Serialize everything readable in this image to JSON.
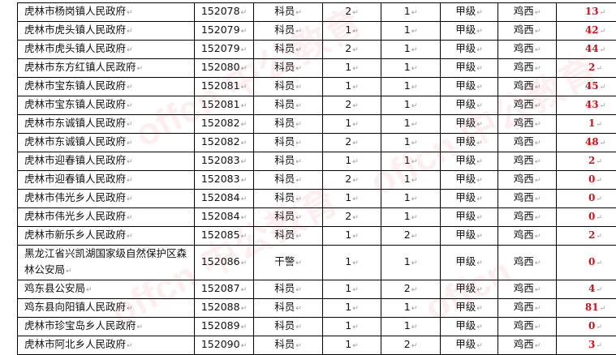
{
  "watermark": "offcn 中公教育",
  "colors": {
    "count": "#c8141b",
    "watermark": "#dc1e1e"
  },
  "rows": [
    {
      "unit": "虎林市杨岗镇人民政府",
      "code": "152078",
      "position": "科员",
      "a": "2",
      "b": "1",
      "level": "甲级",
      "area": "鸡西",
      "count": "13"
    },
    {
      "unit": "虎林市虎头镇人民政府",
      "code": "152079",
      "position": "科员",
      "a": "1",
      "b": "1",
      "level": "甲级",
      "area": "鸡西",
      "count": "42"
    },
    {
      "unit": "虎林市虎头镇人民政府",
      "code": "152079",
      "position": "科员",
      "a": "2",
      "b": "1",
      "level": "甲级",
      "area": "鸡西",
      "count": "44"
    },
    {
      "unit": "虎林市东方红镇人民政府",
      "code": "152080",
      "position": "科员",
      "a": "1",
      "b": "1",
      "level": "甲级",
      "area": "鸡西",
      "count": "2"
    },
    {
      "unit": "虎林市宝东镇人民政府",
      "code": "152081",
      "position": "科员",
      "a": "1",
      "b": "1",
      "level": "甲级",
      "area": "鸡西",
      "count": "45"
    },
    {
      "unit": "虎林市宝东镇人民政府",
      "code": "152081",
      "position": "科员",
      "a": "2",
      "b": "1",
      "level": "甲级",
      "area": "鸡西",
      "count": "43"
    },
    {
      "unit": "虎林市东诚镇人民政府",
      "code": "152082",
      "position": "科员",
      "a": "1",
      "b": "1",
      "level": "甲级",
      "area": "鸡西",
      "count": "1"
    },
    {
      "unit": "虎林市东诚镇人民政府",
      "code": "152082",
      "position": "科员",
      "a": "2",
      "b": "1",
      "level": "甲级",
      "area": "鸡西",
      "count": "48"
    },
    {
      "unit": "虎林市迎春镇人民政府",
      "code": "152083",
      "position": "科员",
      "a": "1",
      "b": "1",
      "level": "甲级",
      "area": "鸡西",
      "count": "2"
    },
    {
      "unit": "虎林市迎春镇人民政府",
      "code": "152083",
      "position": "科员",
      "a": "2",
      "b": "1",
      "level": "甲级",
      "area": "鸡西",
      "count": "0"
    },
    {
      "unit": "虎林市伟光乡人民政府",
      "code": "152084",
      "position": "科员",
      "a": "1",
      "b": "1",
      "level": "甲级",
      "area": "鸡西",
      "count": "0"
    },
    {
      "unit": "虎林市伟光乡人民政府",
      "code": "152084",
      "position": "科员",
      "a": "2",
      "b": "1",
      "level": "甲级",
      "area": "鸡西",
      "count": "0"
    },
    {
      "unit": "虎林市新乐乡人民政府",
      "code": "152085",
      "position": "科员",
      "a": "1",
      "b": "2",
      "level": "甲级",
      "area": "鸡西",
      "count": "2"
    },
    {
      "unit": "黑龙江省兴凯湖国家级自然保护区森林公安局",
      "code": "152086",
      "position": "干警",
      "a": "1",
      "b": "1",
      "level": "甲级",
      "area": "鸡西",
      "count": "0"
    },
    {
      "unit": "鸡东县公安局",
      "code": "152087",
      "position": "科员",
      "a": "1",
      "b": "2",
      "level": "甲级",
      "area": "鸡西",
      "count": "4"
    },
    {
      "unit": "鸡东县向阳镇人民政府",
      "code": "152088",
      "position": "科员",
      "a": "1",
      "b": "1",
      "level": "甲级",
      "area": "鸡西",
      "count": "81"
    },
    {
      "unit": "虎林市珍宝岛乡人民政府",
      "code": "152089",
      "position": "科员",
      "a": "1",
      "b": "1",
      "level": "甲级",
      "area": "鸡西",
      "count": "0"
    },
    {
      "unit": "虎林市阿北乡人民政府",
      "code": "152090",
      "position": "科员",
      "a": "1",
      "b": "2",
      "level": "甲级",
      "area": "鸡西",
      "count": "3"
    }
  ]
}
